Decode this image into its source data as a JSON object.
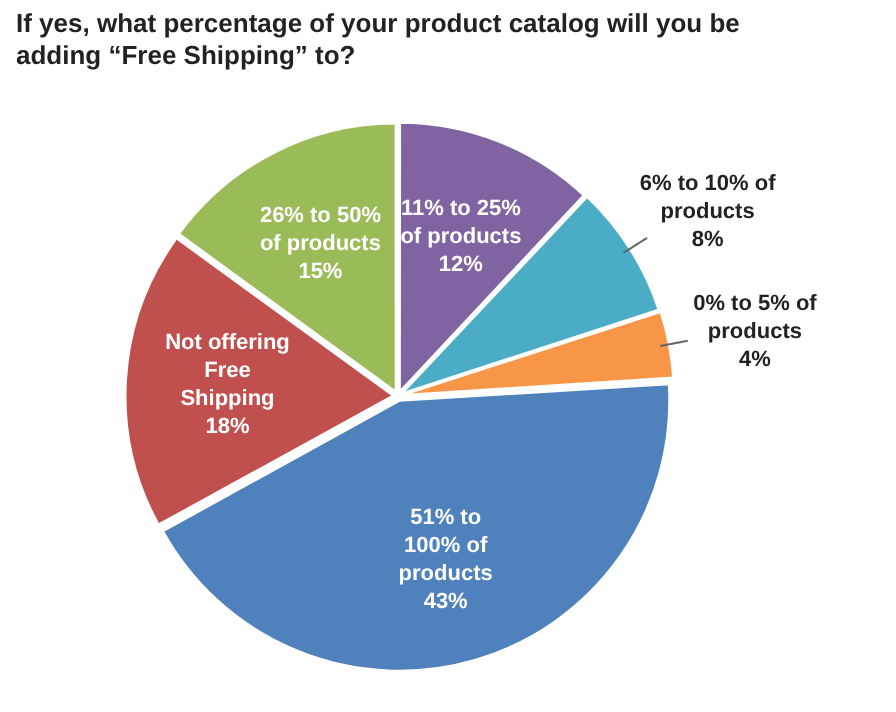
{
  "chart_data": {
    "type": "pie",
    "title": "If yes, what percentage of your product catalog will you be adding “Free Shipping” to?",
    "categories": [
      "11% to 25% of products",
      "6% to 10% of products",
      "0% to 5% of products",
      "51% to 100% of products",
      "Not offering Free Shipping",
      "26% to 50% of products"
    ],
    "values": [
      12,
      8,
      4,
      43,
      18,
      15
    ],
    "colors": [
      "#8064a2",
      "#4bacc6",
      "#f79646",
      "#4f81bd",
      "#c0504d",
      "#9bbb59"
    ],
    "value_labels": [
      "12%",
      "8%",
      "4%",
      "43%",
      "18%",
      "15%"
    ],
    "legend": false
  }
}
